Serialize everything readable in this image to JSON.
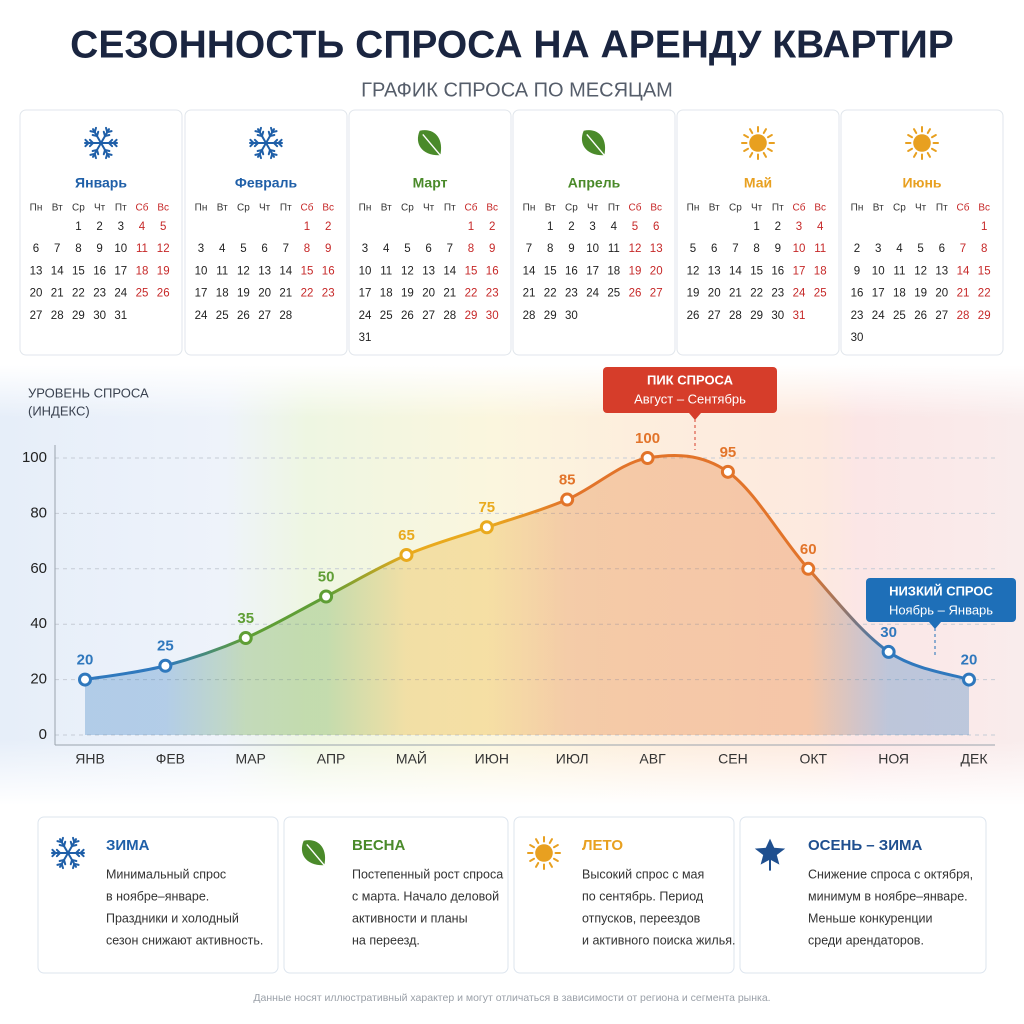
{
  "header": {
    "title": "СЕЗОННОСТЬ СПРОСА НА АРЕНДУ КВАРТИР",
    "subtitle": "ГРАФИК СПРОСА ПО МЕСЯЦАМ"
  },
  "calendars": {
    "weekdays": [
      "Пн",
      "Вт",
      "Ср",
      "Чт",
      "Пт",
      "Сб",
      "Вс"
    ],
    "months": [
      {
        "name": "Январь",
        "color": "#1f5fa8",
        "weeks": [
          [
            null,
            null,
            1,
            2,
            3,
            4,
            5
          ],
          [
            6,
            7,
            8,
            9,
            10,
            11,
            12
          ],
          [
            13,
            14,
            15,
            16,
            17,
            18,
            19
          ],
          [
            20,
            21,
            22,
            23,
            24,
            25,
            26
          ],
          [
            27,
            28,
            29,
            30,
            31
          ]
        ]
      },
      {
        "name": "Февраль",
        "color": "#1f5fa8",
        "weeks": [
          [
            null,
            null,
            null,
            null,
            null,
            1,
            2
          ],
          [
            3,
            4,
            5,
            6,
            7,
            8,
            9
          ],
          [
            10,
            11,
            12,
            13,
            14,
            15,
            16
          ],
          [
            17,
            18,
            19,
            20,
            21,
            22,
            23
          ],
          [
            24,
            25,
            26,
            27,
            28
          ]
        ]
      },
      {
        "name": "Март",
        "color": "#4a8a2a",
        "weeks": [
          [
            null,
            null,
            null,
            null,
            null,
            1,
            2
          ],
          [
            3,
            4,
            5,
            6,
            7,
            8,
            9
          ],
          [
            10,
            11,
            12,
            13,
            14,
            15,
            16
          ],
          [
            17,
            18,
            19,
            20,
            21,
            22,
            23
          ],
          [
            24,
            25,
            26,
            27,
            28,
            29,
            30
          ],
          [
            31
          ]
        ]
      },
      {
        "name": "Апрель",
        "color": "#4a8a2a",
        "weeks": [
          [
            null,
            1,
            2,
            3,
            4,
            5,
            6
          ],
          [
            7,
            8,
            9,
            10,
            11,
            12,
            13
          ],
          [
            14,
            15,
            16,
            17,
            18,
            19,
            20
          ],
          [
            21,
            22,
            23,
            24,
            25,
            26,
            27
          ],
          [
            28,
            29,
            30
          ]
        ]
      },
      {
        "name": "Май",
        "color": "#e8a020",
        "weeks": [
          [
            null,
            null,
            null,
            1,
            2,
            3,
            4
          ],
          [
            5,
            6,
            7,
            8,
            9,
            10,
            11
          ],
          [
            12,
            13,
            14,
            15,
            16,
            17,
            18
          ],
          [
            19,
            20,
            21,
            22,
            23,
            24,
            25
          ],
          [
            26,
            27,
            28,
            29,
            30,
            31
          ]
        ]
      },
      {
        "name": "Июнь",
        "color": "#e8a020",
        "weeks": [
          [
            null,
            null,
            null,
            null,
            null,
            null,
            1
          ],
          [
            2,
            3,
            4,
            5,
            6,
            7,
            8
          ],
          [
            9,
            10,
            11,
            12,
            13,
            14,
            15
          ],
          [
            16,
            17,
            18,
            19,
            20,
            21,
            22
          ],
          [
            23,
            24,
            25,
            26,
            27,
            28,
            29
          ],
          [
            30
          ]
        ]
      }
    ]
  },
  "chart_data": {
    "type": "line",
    "ylabel": [
      "УРОВЕНЬ СПРОСА",
      "(ИНДЕКС)"
    ],
    "categories": [
      "ЯНВ",
      "ФЕВ",
      "МАР",
      "АПР",
      "МАЙ",
      "ИЮН",
      "ИЮЛ",
      "АВГ",
      "СЕН",
      "ОКТ",
      "НОЯ",
      "ДЕК"
    ],
    "values": [
      20,
      25,
      35,
      50,
      65,
      75,
      85,
      100,
      95,
      60,
      30,
      20
    ],
    "colors": [
      "#2f78bd",
      "#2f78bd",
      "#5f9e35",
      "#5f9e35",
      "#e9aa1e",
      "#e9aa1e",
      "#e2742a",
      "#e2742a",
      "#e2742a",
      "#e2742a",
      "#2f78bd",
      "#2f78bd"
    ],
    "ylim": [
      0,
      100
    ],
    "yticks": [
      0,
      20,
      40,
      60,
      80,
      100
    ],
    "grid": true,
    "annotations": [
      {
        "title": "ПИК СПРОСА",
        "text": "Август – Сентябрь",
        "color": "#d63d2a"
      },
      {
        "title": "НИЗКИЙ СПРОС",
        "text": "Ноябрь – Январь",
        "color": "#1e6fb8"
      }
    ]
  },
  "seasons": [
    {
      "title": "ЗИМА",
      "color": "#1f5fa8",
      "lines": [
        "Минимальный спрос",
        "в ноябре–январе.",
        "Праздники и холодный",
        "сезон снижают активность."
      ]
    },
    {
      "title": "ВЕСНА",
      "color": "#4a8a2a",
      "lines": [
        "Постепенный рост спроса",
        "с марта. Начало деловой",
        "активности и планы",
        "на переезд."
      ]
    },
    {
      "title": "ЛЕТО",
      "color": "#e8a020",
      "lines": [
        "Высокий спрос с мая",
        "по сентябрь. Период",
        "отпусков, переездов",
        "и активного поиска жилья."
      ]
    },
    {
      "title": "ОСЕНЬ – ЗИМА",
      "color": "#1f4f8f",
      "lines": [
        "Снижение спроса с октября,",
        "минимум в ноябре–январе.",
        "Меньше конкуренции",
        "среди арендаторов."
      ]
    }
  ],
  "footnote": "Данные носят иллюстративный характер и могут отличаться в зависимости от региона и сегмента рынка."
}
